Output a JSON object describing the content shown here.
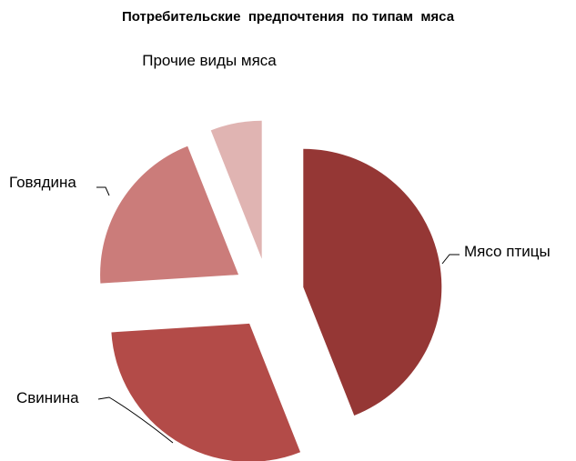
{
  "chart_data": {
    "type": "pie",
    "title": "Потребительские  предпочтения  по типам  мяса",
    "categories": [
      "Мясо птицы",
      "Свинина",
      "Говядина",
      "Прочие виды мяса"
    ],
    "values": [
      44,
      30,
      20,
      6
    ],
    "colors": [
      "#953735",
      "#b34b48",
      "#cb7c7a",
      "#e0b4b2"
    ],
    "exploded": true
  }
}
